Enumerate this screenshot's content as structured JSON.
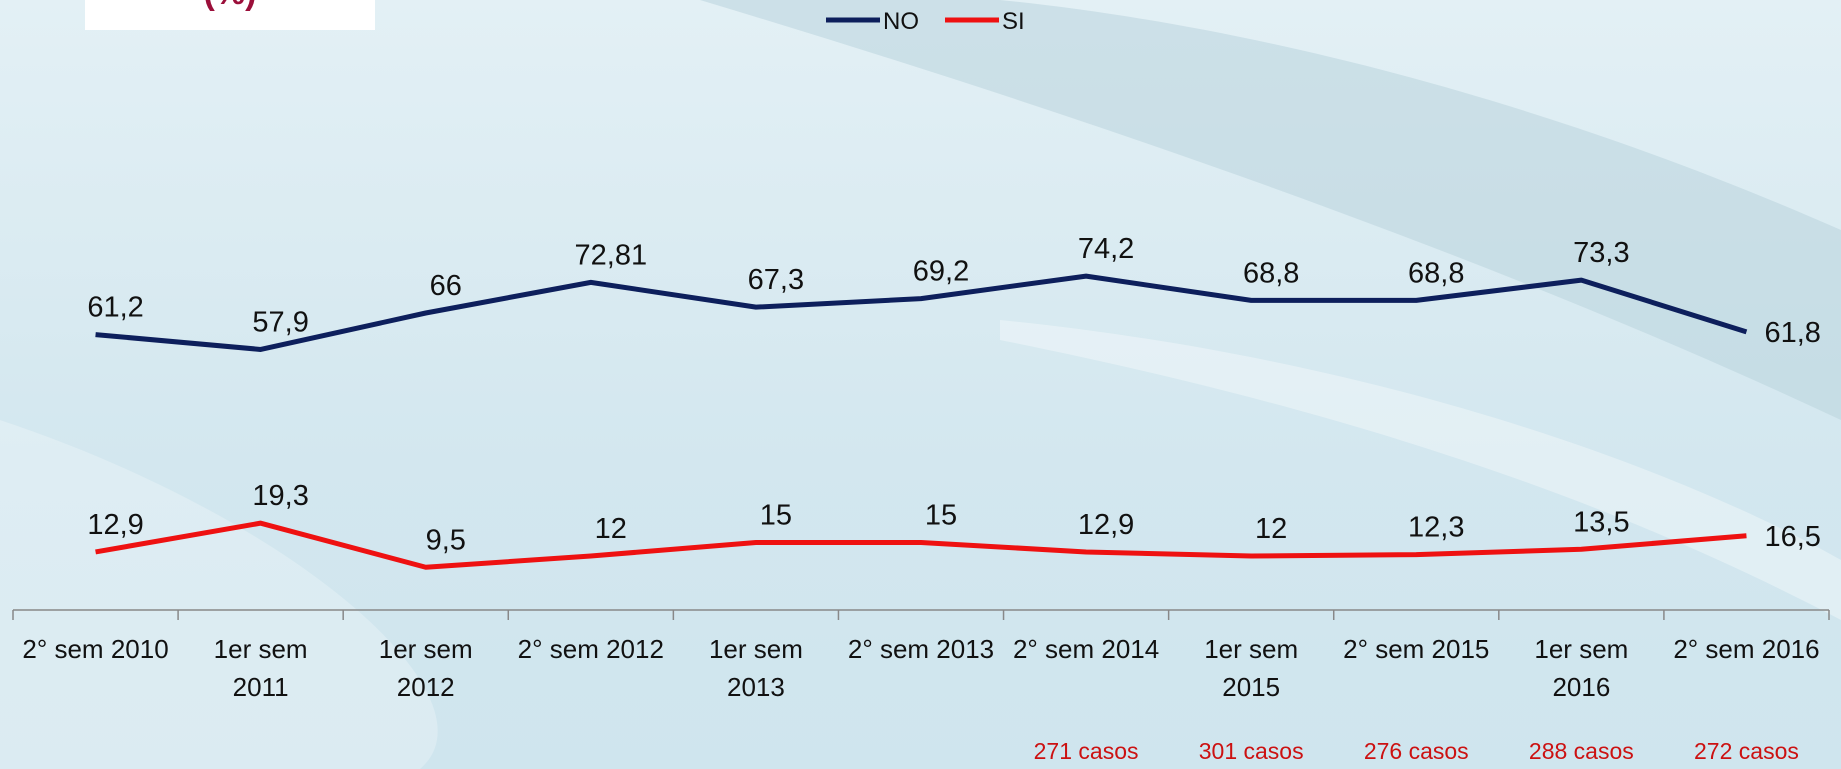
{
  "chart_data": {
    "type": "line",
    "title": "(%)",
    "categories": [
      "2° sem 2010",
      "1er sem\n2011",
      "1er sem\n2012",
      "2° sem 2012",
      "1er sem\n2013",
      "2° sem 2013",
      "2° sem 2014",
      "1er sem\n2015",
      "2° sem 2015",
      "1er sem\n2016",
      "2° sem 2016"
    ],
    "series": [
      {
        "name": "NO",
        "color": "#0d1f5c",
        "values": [
          61.2,
          57.9,
          66,
          72.81,
          67.3,
          69.2,
          74.2,
          68.8,
          68.8,
          73.3,
          61.8
        ],
        "value_labels": [
          "61,2",
          "57,9",
          "66",
          "72,81",
          "67,3",
          "69,2",
          "74,2",
          "68,8",
          "68,8",
          "73,3",
          "61,8"
        ]
      },
      {
        "name": "SI",
        "color": "#ee1111",
        "values": [
          12.9,
          19.3,
          9.5,
          12,
          15,
          15,
          12.9,
          12,
          12.3,
          13.5,
          16.5
        ],
        "value_labels": [
          "12,9",
          "19,3",
          "9,5",
          "12",
          "15",
          "15",
          "12,9",
          "12",
          "12,3",
          "13,5",
          "16,5"
        ]
      }
    ],
    "notes": [
      null,
      null,
      null,
      null,
      null,
      null,
      "271 casos",
      "301 casos",
      "276 casos",
      "288 casos",
      "272 casos"
    ],
    "note_color": "#cc1111"
  }
}
